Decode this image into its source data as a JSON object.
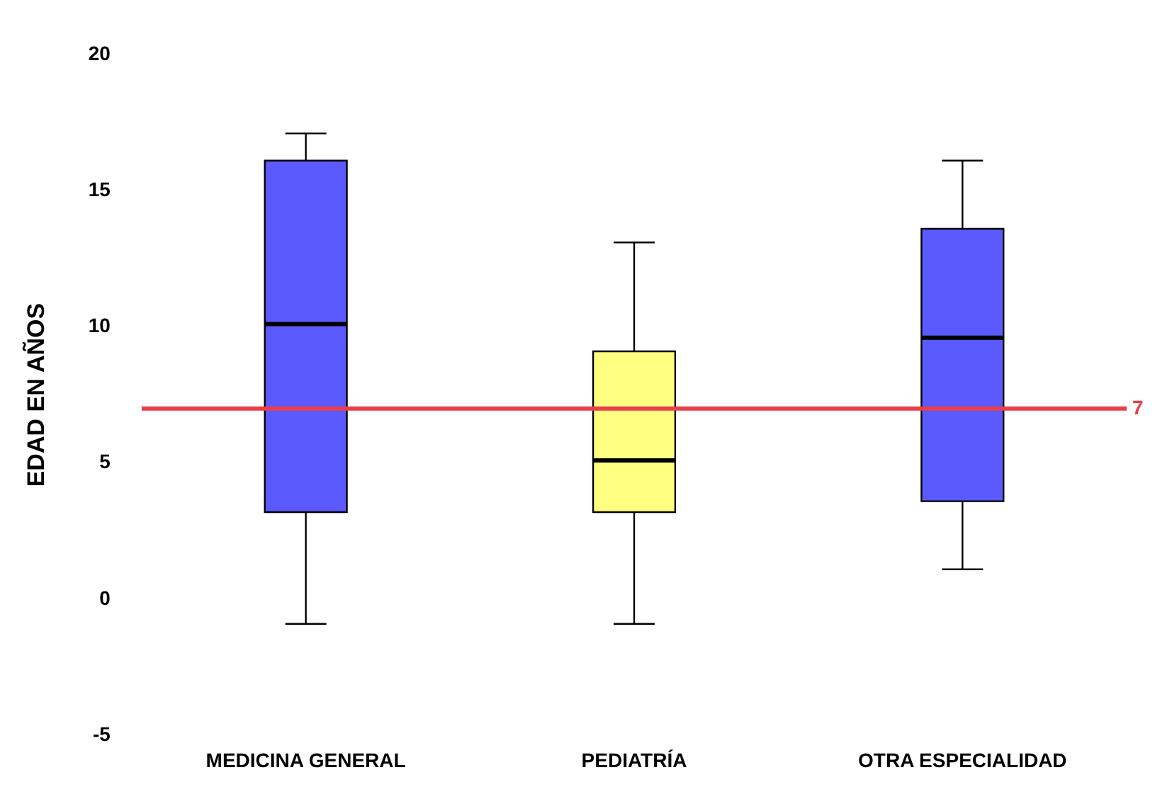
{
  "chart_data": {
    "type": "box",
    "ylabel": "EDAD EN AÑOS",
    "categories": [
      "MEDICINA GENERAL",
      "PEDIATRÍA",
      "OTRA ESPECIALIDAD"
    ],
    "boxes": [
      {
        "low": -0.9,
        "q1": 3.2,
        "median": 10.1,
        "q3": 16.1,
        "high": 17.1
      },
      {
        "low": -0.9,
        "q1": 3.2,
        "median": 5.1,
        "q3": 9.1,
        "high": 13.1
      },
      {
        "low": 1.1,
        "q1": 3.6,
        "median": 9.6,
        "q3": 13.6,
        "high": 16.1
      }
    ],
    "colors": [
      "#5a5aff",
      "#ffff80",
      "#5a5aff"
    ],
    "ylim": [
      -5,
      20
    ],
    "yticks": [
      -5,
      0,
      5,
      10,
      15,
      20
    ],
    "grid": false,
    "legend": false,
    "ref_lines": [
      {
        "axis": "y",
        "value": 7,
        "label": "7",
        "color": "#e8404a"
      }
    ]
  }
}
